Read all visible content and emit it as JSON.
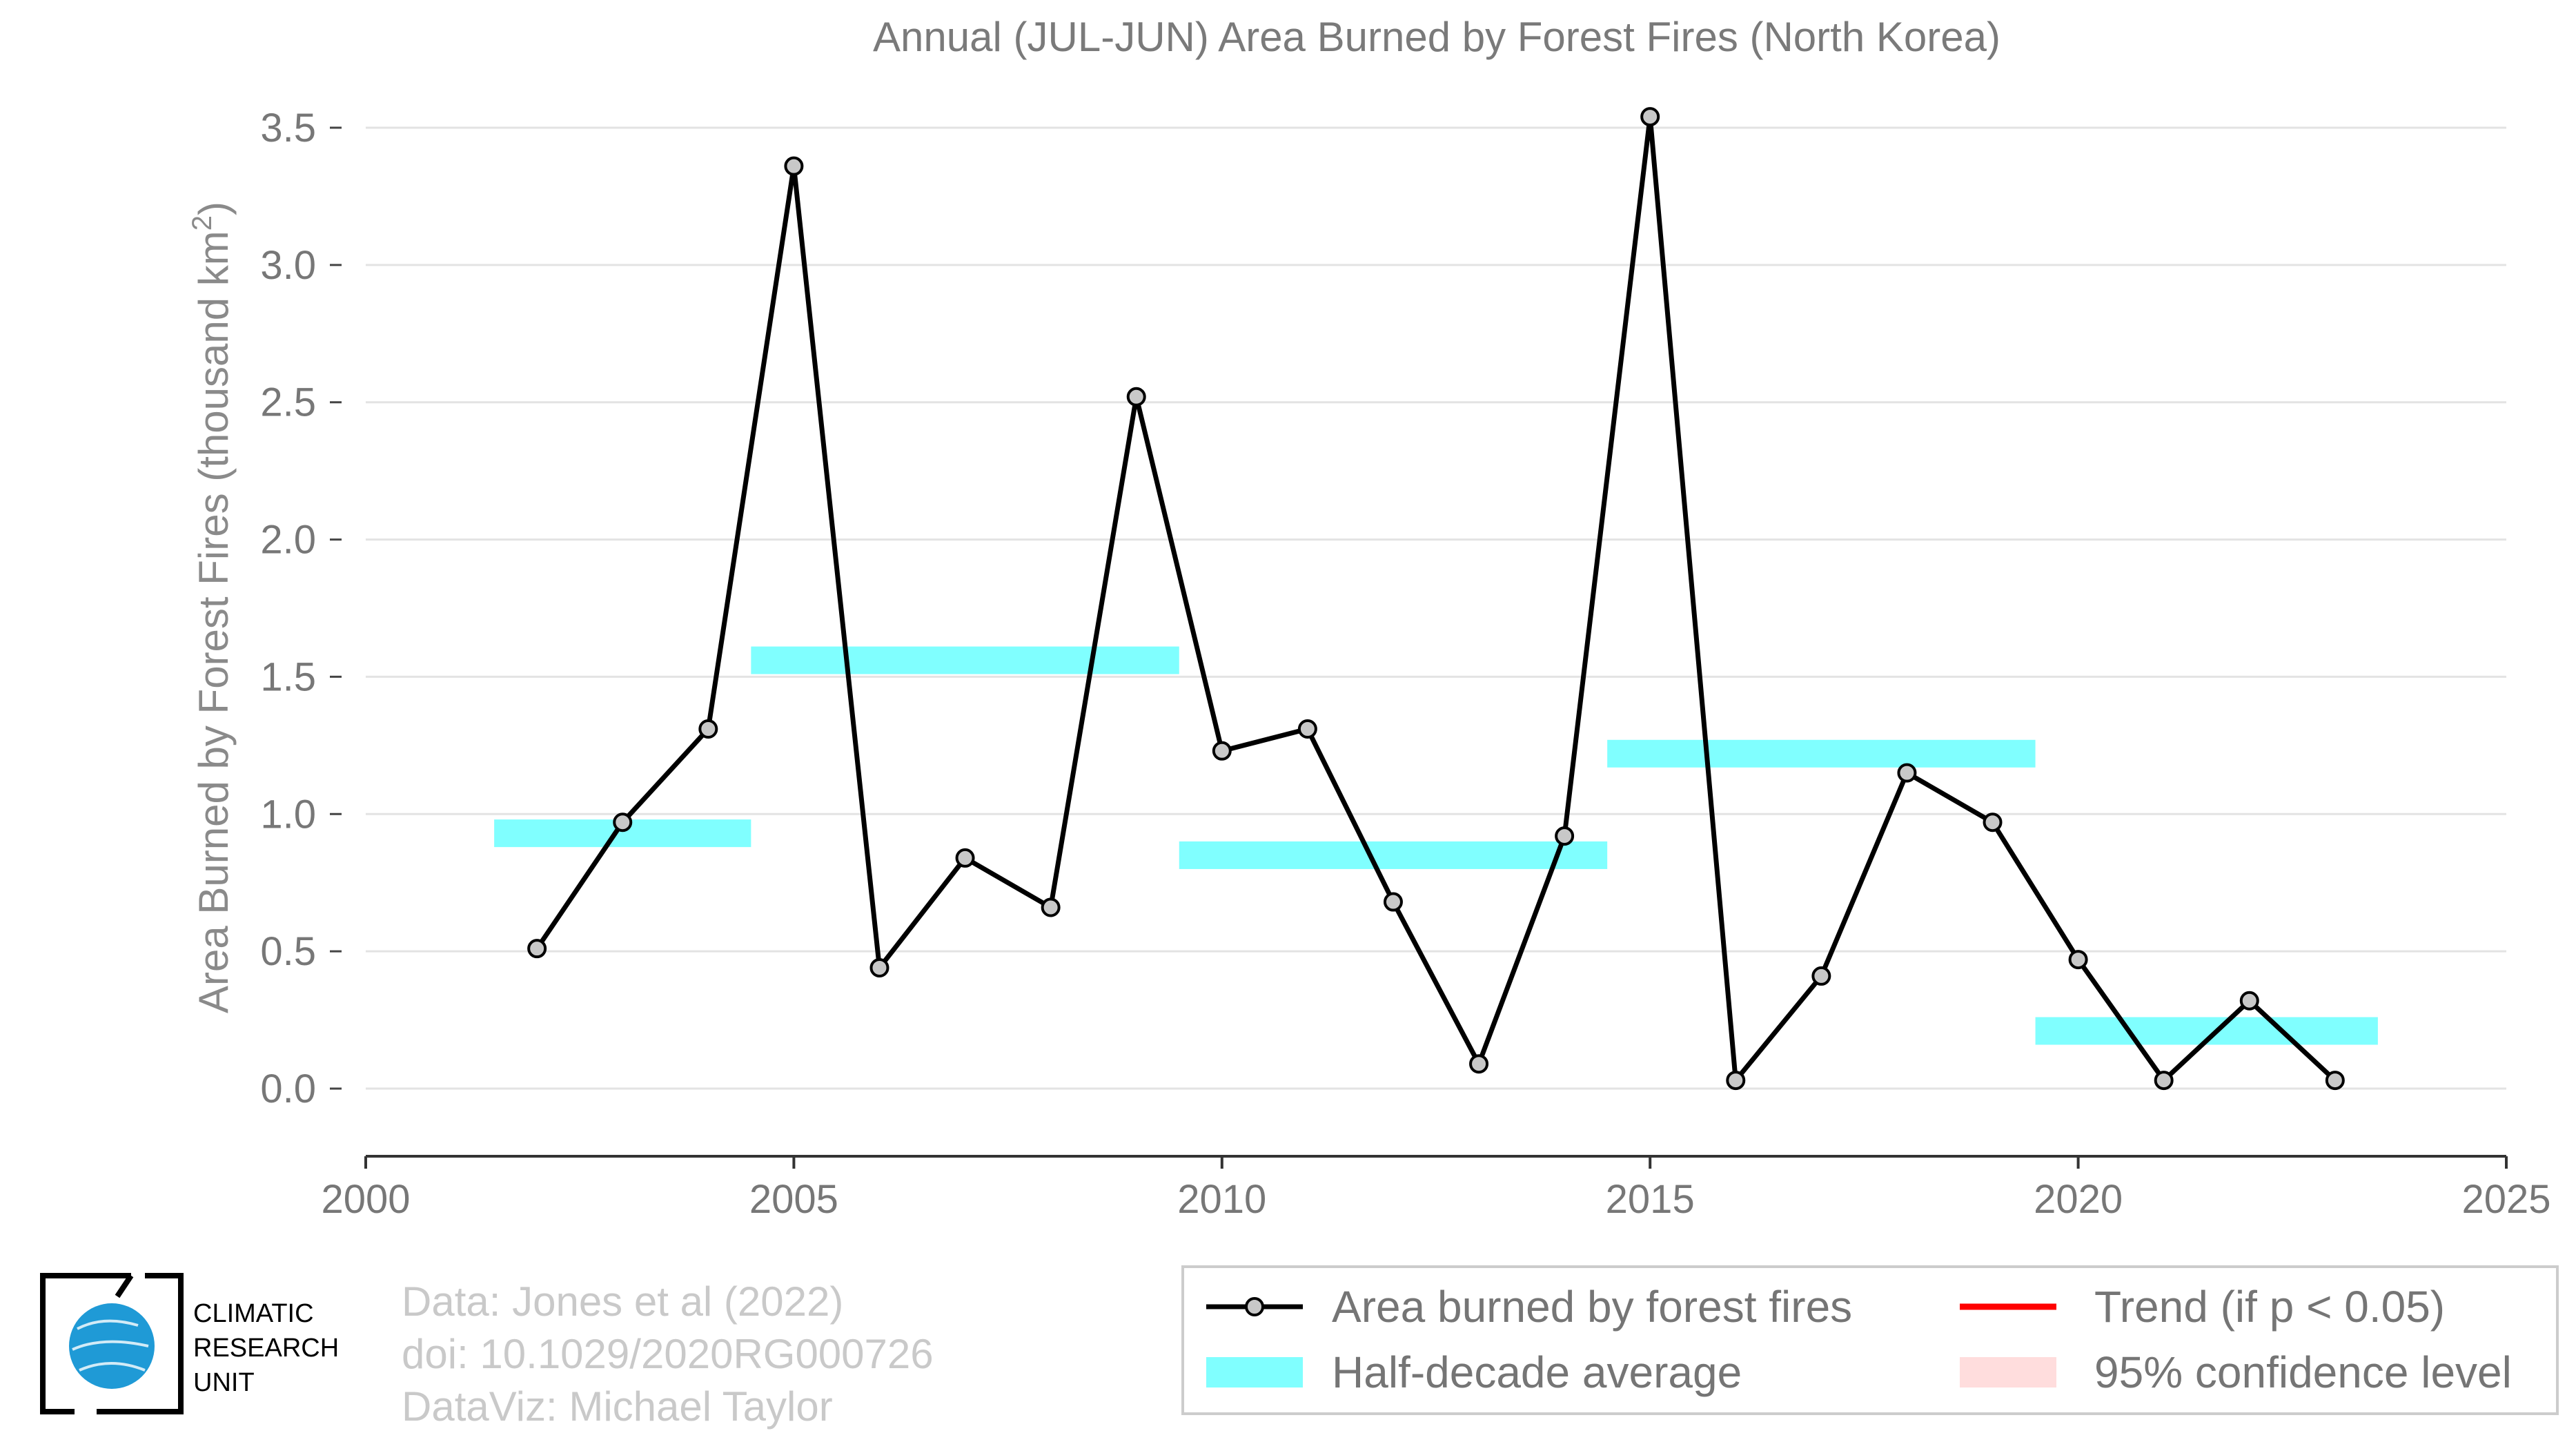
{
  "chart_data": {
    "type": "line",
    "title": "Annual (JUL-JUN) Area Burned by Forest Fires (North Korea)",
    "ylabel_main": "Area Burned by Forest Fires (thousand km",
    "ylabel_sup": "2",
    "ylabel_close": ")",
    "xlabel": "",
    "xlim": [
      2000,
      2025
    ],
    "ylim": [
      -0.25,
      3.55
    ],
    "x_ticks": [
      2000,
      2005,
      2010,
      2015,
      2020,
      2025
    ],
    "y_ticks": [
      0.0,
      0.5,
      1.0,
      1.5,
      2.0,
      2.5,
      3.0,
      3.5
    ],
    "x_tick_labels": [
      "2000",
      "2005",
      "2010",
      "2015",
      "2020",
      "2025"
    ],
    "y_tick_labels": [
      "0.0",
      "0.5",
      "1.0",
      "1.5",
      "2.0",
      "2.5",
      "3.0",
      "3.5"
    ],
    "grid": "horizontal",
    "legend_position": "bottom-right",
    "series": [
      {
        "name": "Area burned by forest fires",
        "color": "#000000",
        "marker_fill": "#c8c8c8",
        "x": [
          2002,
          2003,
          2004,
          2005,
          2006,
          2007,
          2008,
          2009,
          2010,
          2011,
          2012,
          2013,
          2014,
          2015,
          2016,
          2017,
          2018,
          2019,
          2020,
          2021,
          2022,
          2023
        ],
        "y": [
          0.51,
          0.97,
          1.31,
          3.36,
          0.44,
          0.84,
          0.66,
          2.52,
          1.23,
          1.31,
          0.68,
          0.09,
          0.92,
          3.54,
          0.03,
          0.41,
          1.15,
          0.97,
          0.47,
          0.03,
          0.32,
          0.03
        ]
      }
    ],
    "half_decade_average": {
      "name": "Half-decade average",
      "color": "#80ffff",
      "segments": [
        {
          "x_start": 2001.5,
          "x_end": 2004.5,
          "value": 0.93
        },
        {
          "x_start": 2004.5,
          "x_end": 2009.5,
          "value": 1.56
        },
        {
          "x_start": 2009.5,
          "x_end": 2014.5,
          "value": 0.85
        },
        {
          "x_start": 2014.5,
          "x_end": 2019.5,
          "value": 1.22
        },
        {
          "x_start": 2019.5,
          "x_end": 2023.5,
          "value": 0.21
        }
      ]
    },
    "legend": [
      {
        "label": "Area burned by forest fires",
        "kind": "line-marker",
        "color": "#000000"
      },
      {
        "label": "Half-decade average",
        "kind": "band",
        "color": "#80ffff"
      },
      {
        "label": "Trend (if p < 0.05)",
        "kind": "line",
        "color": "#ff0000"
      },
      {
        "label": "95% confidence level",
        "kind": "band",
        "color": "#ffdddd"
      }
    ]
  },
  "credits": {
    "line1": "Data: Jones et al (2022)",
    "line2": "doi: 10.1029/2020RG000726",
    "line3": "DataViz: Michael Taylor"
  },
  "logo": {
    "line1": "CLIMATIC",
    "line2": "RESEARCH",
    "line3": "UNIT",
    "globe_color": "#1f9ad6"
  }
}
